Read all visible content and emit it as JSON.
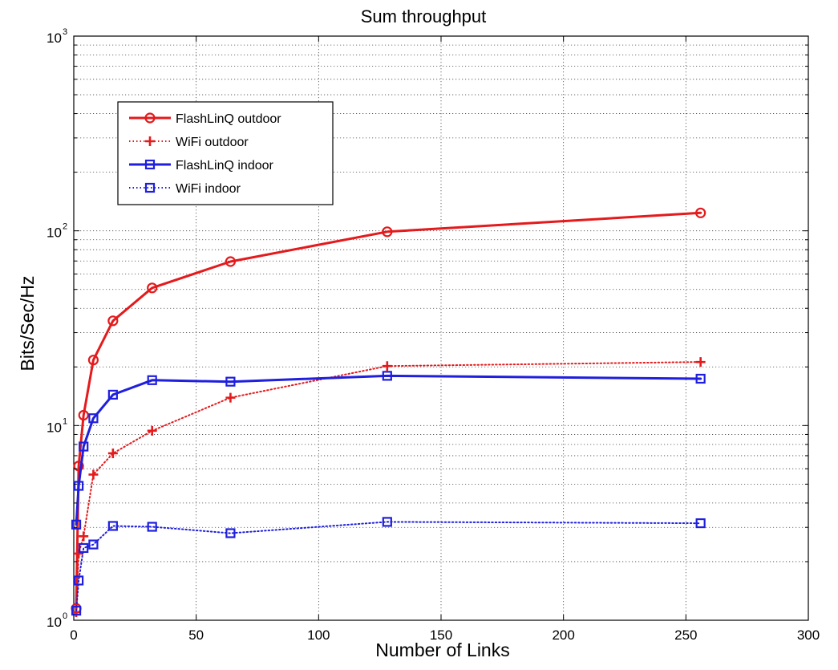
{
  "chart_data": {
    "type": "line",
    "title": "Sum throughput",
    "xlabel": "Number of Links",
    "ylabel": "Bits/Sec/Hz",
    "xlim": [
      0,
      300
    ],
    "ylim": [
      1,
      1000
    ],
    "yscale": "log",
    "grid": true,
    "legend_position": "top-left",
    "x_ticks": [
      "0",
      "50",
      "100",
      "150",
      "200",
      "250",
      "300"
    ],
    "y_ticks": [
      {
        "base": "10",
        "exp": "0"
      },
      {
        "base": "10",
        "exp": "1"
      },
      {
        "base": "10",
        "exp": "2"
      },
      {
        "base": "10",
        "exp": "3"
      }
    ],
    "x": [
      1,
      2,
      4,
      8,
      16,
      32,
      64,
      128,
      256
    ],
    "series": [
      {
        "name": "FlashLinQ outdoor",
        "color": "#e41a1c",
        "style": "solid",
        "marker": "circle",
        "values": [
          1.15,
          6.2,
          11.3,
          21.7,
          34.5,
          50.9,
          69.5,
          98.9,
          123.6
        ]
      },
      {
        "name": "WiFi outdoor",
        "color": "#e41a1c",
        "style": "dotted",
        "marker": "plus",
        "values": [
          1.1,
          2.2,
          2.7,
          5.6,
          7.2,
          9.4,
          13.9,
          20.2,
          21.2
        ]
      },
      {
        "name": "FlashLinQ indoor",
        "color": "#1f1fdd",
        "style": "solid",
        "marker": "square",
        "values": [
          3.1,
          4.9,
          7.8,
          10.9,
          14.4,
          17.1,
          16.8,
          18.0,
          17.4
        ]
      },
      {
        "name": "WiFi indoor",
        "color": "#1f1fdd",
        "style": "dotted",
        "marker": "square",
        "values": [
          1.12,
          1.6,
          2.35,
          2.45,
          3.05,
          3.02,
          2.8,
          3.2,
          3.15
        ]
      }
    ]
  }
}
